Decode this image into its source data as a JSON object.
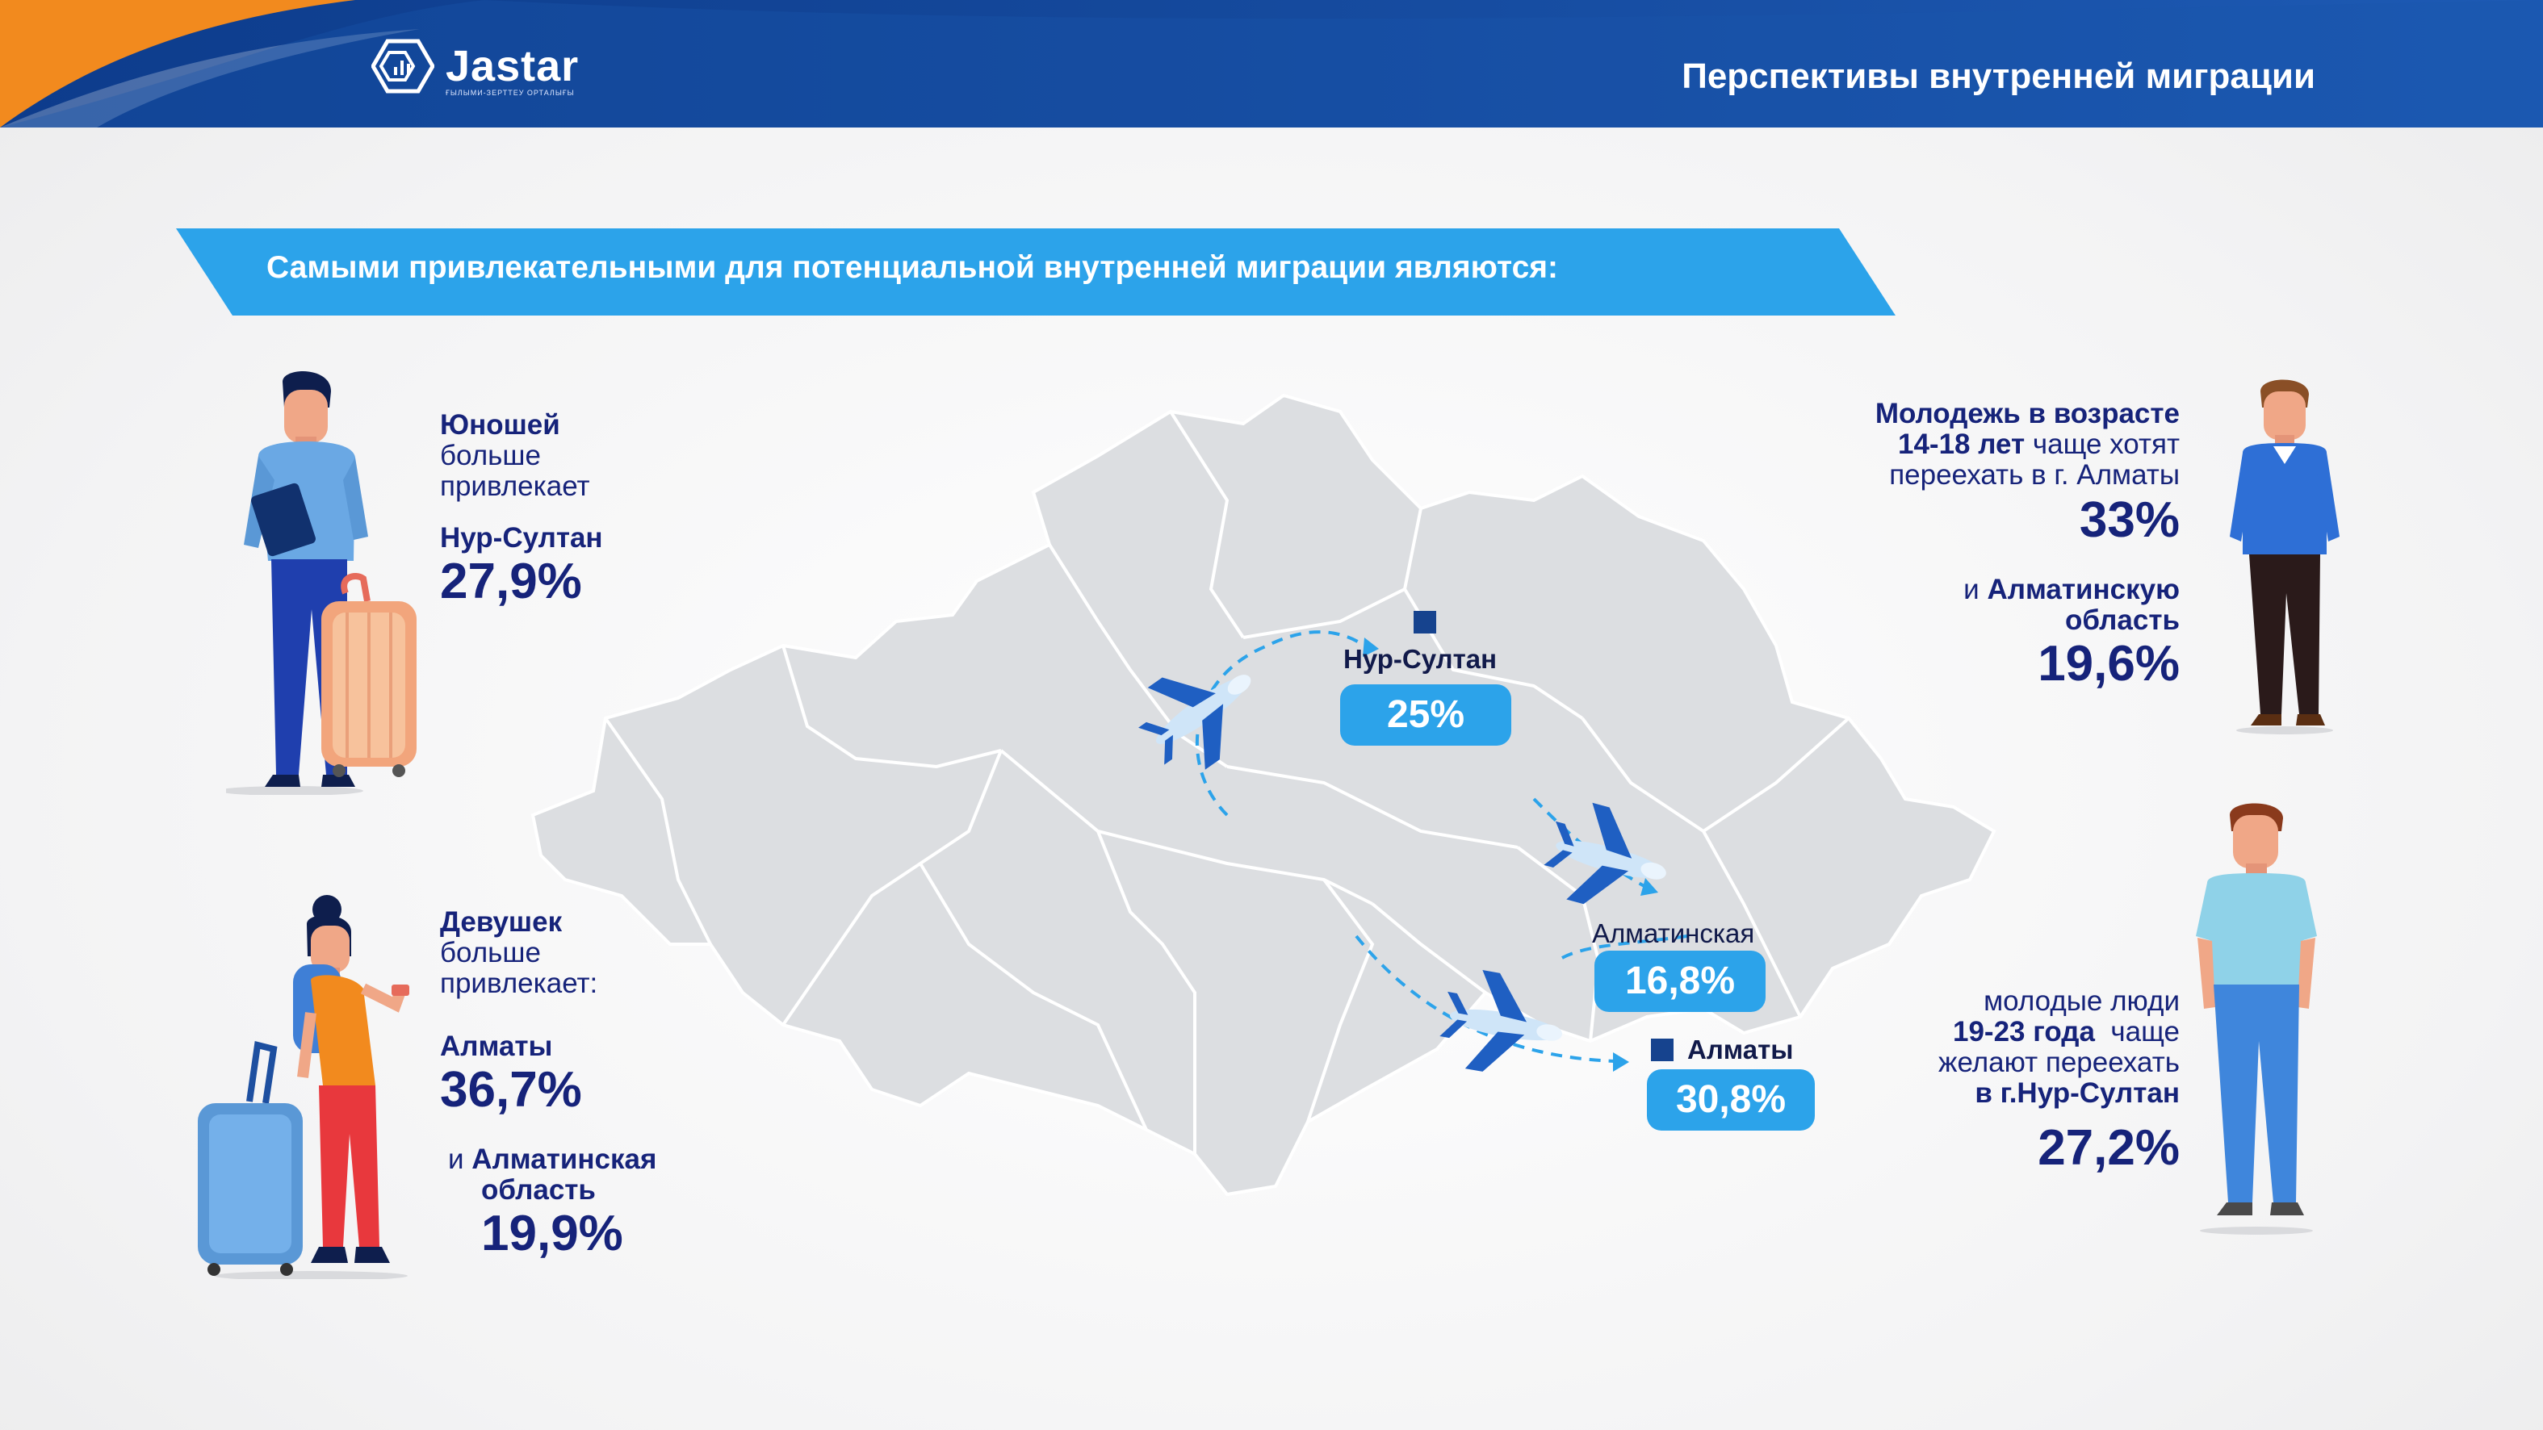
{
  "header": {
    "logo_text": "Jastar",
    "logo_subtitle": "ҒЫЛЫМИ-ЗЕРТТЕУ ОРТАЛЫҒЫ",
    "title": "Перспективы внутренней миграции",
    "colors": {
      "header_bg": "#0d3c8c",
      "accent_orange": "#f28a1e"
    }
  },
  "banner": {
    "text": "Самыми привлекательными для потенциальной внутренней миграции являются:",
    "color": "#2ca3ea"
  },
  "left_top": {
    "line1": "Юношей",
    "line2": "больше",
    "line3": "привлекает",
    "city": "Нур-Султан",
    "value": "27,9%",
    "icon": "young-man-with-suitcase-icon"
  },
  "left_bottom": {
    "line1": "Девушек",
    "line2": "больше",
    "line3": "привлекает:",
    "city": "Алматы",
    "value": "36,7%",
    "conj": "и",
    "region_line1": "Алматинская",
    "region_line2": "область",
    "region_value": "19,9%",
    "icon": "young-woman-with-suitcase-icon"
  },
  "right_top": {
    "line1": "Молодежь в возрасте",
    "line2_bold": "14-18 лет",
    "line2_light": "чаще хотят",
    "line3": "переехать в г. Алматы",
    "value": "33%",
    "conj": "и",
    "region_line1": "Алматинскую",
    "region_line2": "область",
    "region_value": "19,6%",
    "icon": "teen-boy-icon"
  },
  "right_bottom": {
    "line1": "молодые люди",
    "line2_bold": "19-23 года",
    "line2_light": "чаще",
    "line3": "желают переехать",
    "line4": "в г.Нур-Султан",
    "value": "27,2%",
    "icon": "young-man-icon"
  },
  "map": {
    "icon": "kazakhstan-map",
    "cities": [
      {
        "name": "Нур-Султан",
        "value": "25%"
      },
      {
        "name": "Алматинская",
        "value": "16,8%"
      },
      {
        "name": "Алматы",
        "value": "30,8%"
      }
    ],
    "plane_icon": "airplane-icon"
  }
}
